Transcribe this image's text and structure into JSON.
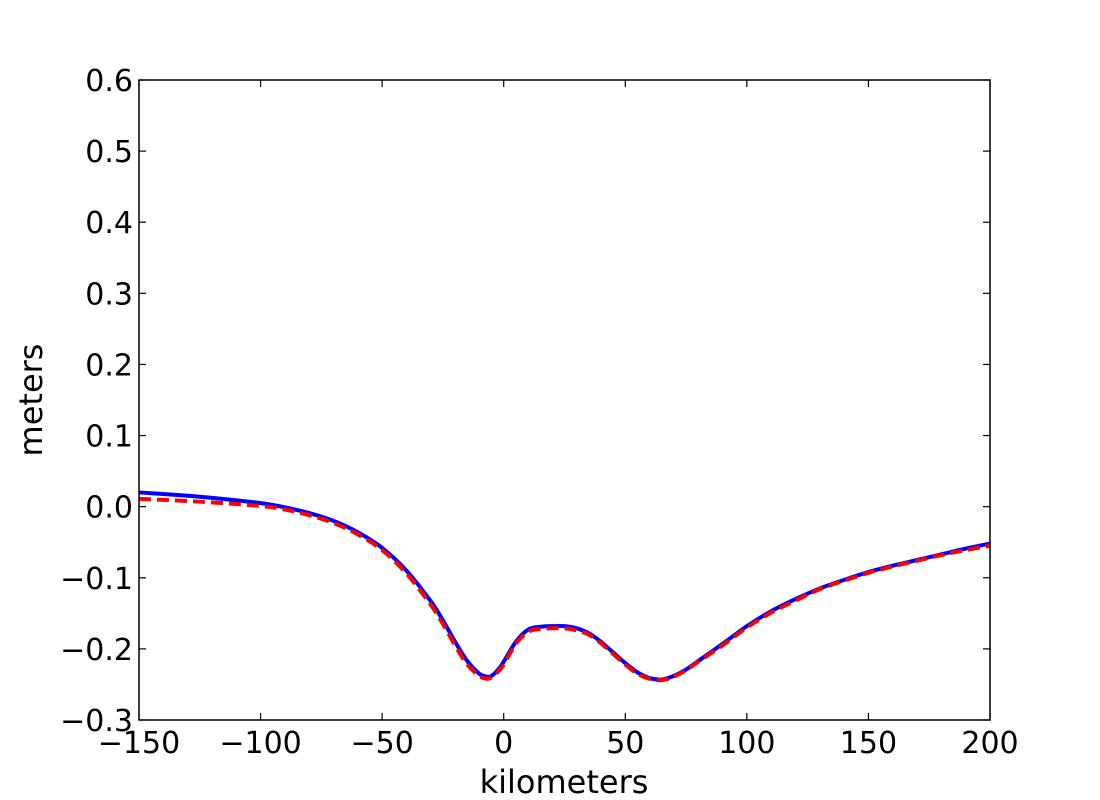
{
  "chart_data": {
    "type": "line",
    "title": "",
    "xlabel": "kilometers",
    "ylabel": "meters",
    "xlim": [
      -150,
      200
    ],
    "ylim": [
      -0.3,
      0.6
    ],
    "xticks": [
      -150,
      -100,
      -50,
      0,
      50,
      100,
      150,
      200
    ],
    "xtick_labels": [
      "−150",
      "−100",
      "−50",
      "0",
      "50",
      "100",
      "150",
      "200"
    ],
    "yticks": [
      -0.3,
      -0.2,
      -0.1,
      0.0,
      0.1,
      0.2,
      0.3,
      0.4,
      0.5,
      0.6
    ],
    "ytick_labels": [
      "−0.3",
      "−0.2",
      "−0.1",
      "0.0",
      "0.1",
      "0.2",
      "0.3",
      "0.4",
      "0.5",
      "0.6"
    ],
    "grid": false,
    "legend": "none",
    "series": [
      {
        "color": "#0000ff",
        "style": "solid",
        "x": [
          -150,
          -125,
          -100,
          -90,
          -80,
          -70,
          -60,
          -50,
          -40,
          -30,
          -25,
          -20,
          -15,
          -10,
          -7,
          -5,
          -2,
          0,
          5,
          10,
          15,
          20,
          25,
          30,
          35,
          40,
          45,
          50,
          55,
          60,
          65,
          70,
          75,
          80,
          90,
          100,
          110,
          120,
          130,
          140,
          150,
          160,
          170,
          180,
          190,
          200
        ],
        "y": [
          0.02,
          0.014,
          0.005,
          -0.001,
          -0.009,
          -0.02,
          -0.036,
          -0.058,
          -0.09,
          -0.133,
          -0.16,
          -0.19,
          -0.217,
          -0.235,
          -0.239,
          -0.238,
          -0.228,
          -0.218,
          -0.19,
          -0.173,
          -0.169,
          -0.168,
          -0.168,
          -0.171,
          -0.178,
          -0.19,
          -0.205,
          -0.22,
          -0.233,
          -0.241,
          -0.243,
          -0.238,
          -0.229,
          -0.217,
          -0.193,
          -0.168,
          -0.147,
          -0.13,
          -0.115,
          -0.103,
          -0.092,
          -0.083,
          -0.075,
          -0.067,
          -0.059,
          -0.052
        ]
      },
      {
        "color": "#ff0000",
        "style": "dashed",
        "x": [
          -150,
          -125,
          -100,
          -90,
          -80,
          -70,
          -60,
          -50,
          -40,
          -30,
          -25,
          -20,
          -15,
          -10,
          -7,
          -5,
          -2,
          0,
          5,
          10,
          15,
          20,
          25,
          30,
          35,
          40,
          45,
          50,
          55,
          60,
          65,
          70,
          75,
          80,
          90,
          100,
          110,
          120,
          130,
          140,
          150,
          160,
          170,
          180,
          190,
          200
        ],
        "y": [
          0.011,
          0.007,
          0.001,
          -0.004,
          -0.012,
          -0.023,
          -0.039,
          -0.061,
          -0.094,
          -0.138,
          -0.165,
          -0.195,
          -0.222,
          -0.238,
          -0.242,
          -0.24,
          -0.231,
          -0.222,
          -0.193,
          -0.176,
          -0.172,
          -0.171,
          -0.171,
          -0.174,
          -0.18,
          -0.192,
          -0.207,
          -0.222,
          -0.235,
          -0.242,
          -0.244,
          -0.239,
          -0.23,
          -0.218,
          -0.195,
          -0.17,
          -0.149,
          -0.132,
          -0.116,
          -0.104,
          -0.093,
          -0.084,
          -0.076,
          -0.068,
          -0.061,
          -0.055
        ]
      }
    ]
  }
}
